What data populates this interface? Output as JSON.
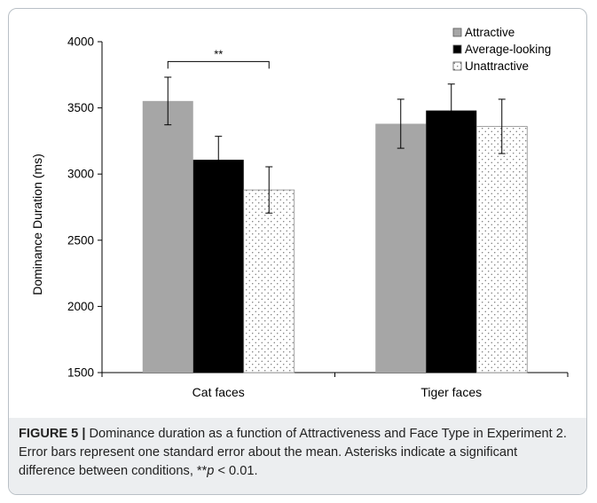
{
  "chart_data": {
    "type": "bar",
    "ylabel": "Dominance Duration (ms)",
    "xlabel": "",
    "ylim": [
      1500,
      4000
    ],
    "yticks": [
      1500,
      2000,
      2500,
      3000,
      3500,
      4000
    ],
    "categories": [
      "Cat faces",
      "Tiger faces"
    ],
    "series": [
      {
        "name": "Attractive",
        "values": [
          3552,
          3380
        ],
        "errors": [
          180,
          185
        ],
        "color": "#a6a6a6",
        "pattern": "solid"
      },
      {
        "name": "Average-looking",
        "values": [
          3108,
          3480
        ],
        "errors": [
          177,
          200
        ],
        "color": "#000000",
        "pattern": "solid"
      },
      {
        "name": "Unattractive",
        "values": [
          2880,
          3360
        ],
        "errors": [
          175,
          205
        ],
        "color": "#ffffff",
        "pattern": "dots"
      }
    ],
    "legend_position": "top-right",
    "annotations": [
      {
        "text": "**",
        "category": "Cat faces",
        "from_series": "Attractive",
        "to_series": "Unattractive",
        "y": 3850
      }
    ],
    "grid": false
  },
  "caption": {
    "label": "FIGURE 5 |",
    "text_part1": " Dominance duration as a function of Attractiveness and Face Type in Experiment 2. Error bars represent one standard error about the mean. Asterisks indicate a significant difference between conditions, **",
    "p_symbol": "p",
    "text_part2": " < 0.01."
  }
}
